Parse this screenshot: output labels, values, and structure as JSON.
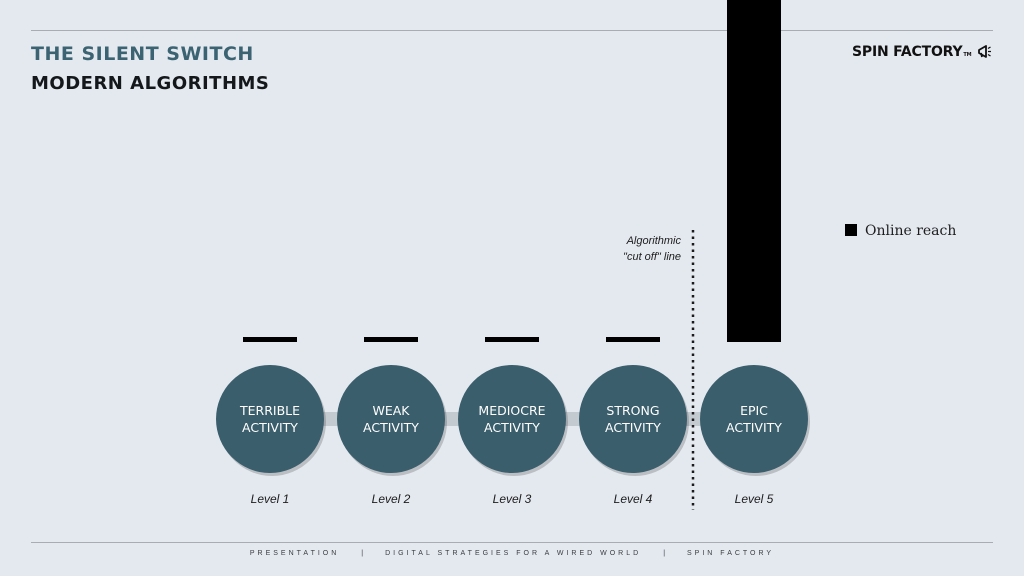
{
  "header": {
    "title": "THE SILENT SWITCH",
    "subtitle": "MODERN ALGORITHMS",
    "brand": "SPIN FACTORY",
    "brand_tm": "TM",
    "brand_icon": "megaphone-icon"
  },
  "annotation": {
    "line1": "Algorithmic",
    "line2": "\"cut off\" line"
  },
  "footer": {
    "items": [
      "PRESENTATION",
      "DIGITAL STRATEGIES FOR A WIRED WORLD",
      "SPIN FACTORY"
    ],
    "separator": "|"
  },
  "colors": {
    "background": "#e4e9f0",
    "title": "#3b6372",
    "circle": "#3a5e6c",
    "bar": "#000000",
    "arrow": "#c3cad0"
  },
  "chart_data": {
    "type": "bar",
    "categories": [
      "TERRIBLE ACTIVITY",
      "WEAK ACTIVITY",
      "MEDIOCRE ACTIVITY",
      "STRONG ACTIVITY",
      "EPIC ACTIVITY"
    ],
    "category_lines": [
      [
        "TERRIBLE",
        "ACTIVITY"
      ],
      [
        "WEAK",
        "ACTIVITY"
      ],
      [
        "MEDIOCRE",
        "ACTIVITY"
      ],
      [
        "STRONG",
        "ACTIVITY"
      ],
      [
        "EPIC",
        "ACTIVITY"
      ]
    ],
    "levels": [
      "Level 1",
      "Level 2",
      "Level 3",
      "Level 4",
      "Level 5"
    ],
    "series": [
      {
        "name": "Online reach",
        "values": [
          1,
          1,
          1,
          1,
          100
        ]
      }
    ],
    "cutoff_after_index": 3,
    "ylim": [
      0,
      100
    ],
    "legend": "right",
    "grid": false
  }
}
